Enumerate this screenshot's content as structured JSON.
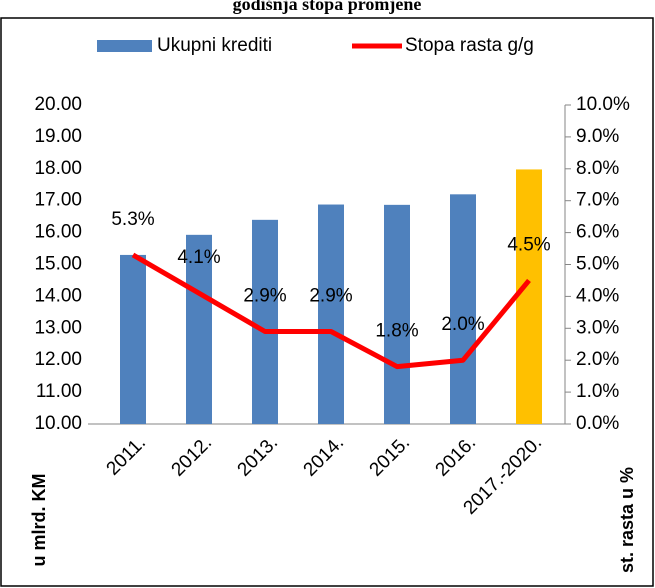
{
  "chart_data": {
    "type": "bar-line",
    "title": "godišnja stopa promjene",
    "y_label": "u mlrd. KM",
    "y2_label": "st. rasta u %",
    "categories": [
      "2011.",
      "2012.",
      "2013.",
      "2014.",
      "2015.",
      "2016.",
      "2017.-2020."
    ],
    "series": [
      {
        "name": "Ukupni krediti",
        "type": "bar",
        "color": "#4f81bd",
        "colors": [
          "#4f81bd",
          "#4f81bd",
          "#4f81bd",
          "#4f81bd",
          "#4f81bd",
          "#4f81bd",
          "#ffc000"
        ],
        "values": [
          15.3,
          15.93,
          16.4,
          16.88,
          16.87,
          17.2,
          17.98
        ]
      },
      {
        "name": "Stopa rasta g/g",
        "type": "line",
        "axis": "y2",
        "color": "#ff0000",
        "values": [
          5.3,
          4.1,
          2.9,
          2.9,
          1.8,
          2.0,
          4.5
        ],
        "value_labels": [
          "5.3%",
          "4.1%",
          "2.9%",
          "2.9%",
          "1.8%",
          "2.0%",
          "4.5%"
        ]
      }
    ],
    "ylim": [
      10,
      20
    ],
    "yticks": [
      {
        "value": 10,
        "label": "10.00"
      },
      {
        "value": 11,
        "label": "11.00"
      },
      {
        "value": 12,
        "label": "12.00"
      },
      {
        "value": 13,
        "label": "13.00"
      },
      {
        "value": 14,
        "label": "14.00"
      },
      {
        "value": 15,
        "label": "15.00"
      },
      {
        "value": 16,
        "label": "16.00"
      },
      {
        "value": 17,
        "label": "17.00"
      },
      {
        "value": 18,
        "label": "18.00"
      },
      {
        "value": 19,
        "label": "19.00"
      },
      {
        "value": 20,
        "label": "20.00"
      }
    ],
    "y2lim": [
      0,
      10
    ],
    "y2ticks": [
      {
        "value": 0,
        "label": "0.0%"
      },
      {
        "value": 1,
        "label": "1.0%"
      },
      {
        "value": 2,
        "label": "2.0%"
      },
      {
        "value": 3,
        "label": "3.0%"
      },
      {
        "value": 4,
        "label": "4.0%"
      },
      {
        "value": 5,
        "label": "5.0%"
      },
      {
        "value": 6,
        "label": "6.0%"
      },
      {
        "value": 7,
        "label": "7.0%"
      },
      {
        "value": 8,
        "label": "8.0%"
      },
      {
        "value": 9,
        "label": "9.0%"
      },
      {
        "value": 10,
        "label": "10.0%"
      }
    ],
    "grid": false,
    "legend": "top"
  }
}
